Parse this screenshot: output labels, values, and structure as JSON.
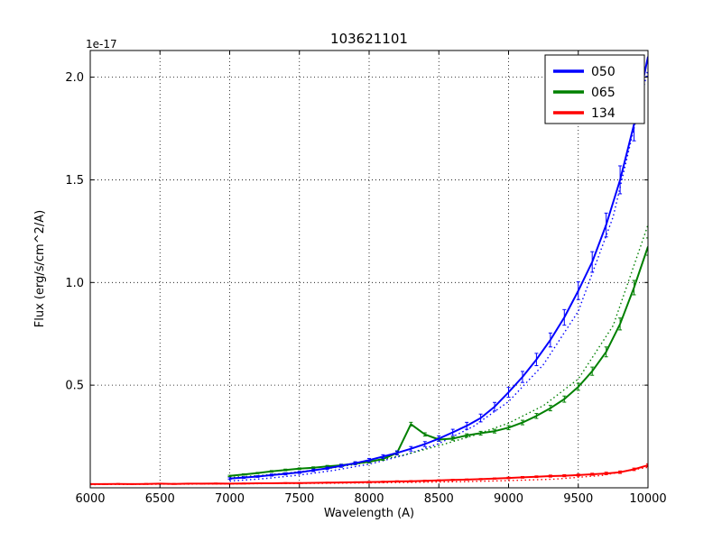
{
  "chart_data": {
    "type": "line",
    "title": "103621101",
    "xlabel": "Wavelength (A)",
    "ylabel": "Flux (erg/s/cm^2/A)",
    "y_offset_label": "1e-17",
    "xlim": [
      6000,
      10000
    ],
    "ylim": [
      0,
      2.13
    ],
    "grid": true,
    "x_ticks": [
      6000,
      6500,
      7000,
      7500,
      8000,
      8500,
      9000,
      9500,
      10000
    ],
    "x_tick_labels": [
      "6000",
      "6500",
      "7000",
      "7500",
      "8000",
      "8500",
      "9000",
      "9500",
      "10000"
    ],
    "y_ticks": [
      0.5,
      1.0,
      1.5,
      2.0
    ],
    "y_tick_labels": [
      "0.5",
      "1.0",
      "1.5",
      "2.0"
    ],
    "legend": {
      "position": "upper right",
      "entries": [
        {
          "label": "050",
          "color": "#0000ff"
        },
        {
          "label": "065",
          "color": "#008000"
        },
        {
          "label": "134",
          "color": "#ff0000"
        }
      ]
    },
    "series": [
      {
        "name": "050-dotted",
        "color": "#0000ff",
        "style": "dotted",
        "x": [
          7000,
          7250,
          7500,
          7750,
          8000,
          8250,
          8500,
          8750,
          9000,
          9250,
          9500,
          9750,
          10000
        ],
        "y": [
          0.033,
          0.045,
          0.062,
          0.085,
          0.115,
          0.158,
          0.215,
          0.3,
          0.42,
          0.6,
          0.86,
          1.32,
          2.04
        ]
      },
      {
        "name": "065-dotted",
        "color": "#008000",
        "style": "dotted",
        "x": [
          7000,
          7250,
          7500,
          7750,
          8000,
          8250,
          8500,
          8750,
          9000,
          9250,
          9500,
          9750,
          10000
        ],
        "y": [
          0.05,
          0.062,
          0.078,
          0.098,
          0.125,
          0.16,
          0.205,
          0.255,
          0.315,
          0.4,
          0.53,
          0.79,
          1.28
        ]
      },
      {
        "name": "134-dotted",
        "color": "#ff0000",
        "style": "dotted",
        "x": [
          6000,
          6333,
          6667,
          7000,
          7333,
          7667,
          8000,
          8333,
          8667,
          9000,
          9333,
          9667,
          10000
        ],
        "y": [
          0.016,
          0.017,
          0.018,
          0.019,
          0.021,
          0.022,
          0.024,
          0.027,
          0.03,
          0.035,
          0.042,
          0.06,
          0.1
        ]
      },
      {
        "name": "134",
        "color": "#ff0000",
        "style": "solid",
        "x": [
          6000,
          6100,
          6200,
          6300,
          6400,
          6500,
          6600,
          6700,
          6800,
          6900,
          7000,
          7100,
          7200,
          7300,
          7400,
          7500,
          7600,
          7700,
          7800,
          7900,
          8000,
          8100,
          8200,
          8300,
          8400,
          8500,
          8600,
          8700,
          8800,
          8900,
          9000,
          9100,
          9200,
          9300,
          9400,
          9500,
          9600,
          9700,
          9800,
          9900,
          10000
        ],
        "y": [
          0.018,
          0.018,
          0.019,
          0.018,
          0.019,
          0.02,
          0.019,
          0.02,
          0.02,
          0.021,
          0.02,
          0.021,
          0.022,
          0.022,
          0.023,
          0.023,
          0.024,
          0.025,
          0.026,
          0.027,
          0.028,
          0.029,
          0.031,
          0.032,
          0.034,
          0.036,
          0.038,
          0.04,
          0.042,
          0.045,
          0.048,
          0.051,
          0.054,
          0.057,
          0.059,
          0.062,
          0.066,
          0.07,
          0.076,
          0.09,
          0.11
        ],
        "yerr": [
          0.002,
          0.002,
          0.002,
          0.002,
          0.002,
          0.002,
          0.002,
          0.002,
          0.002,
          0.002,
          0.002,
          0.002,
          0.002,
          0.002,
          0.002,
          0.002,
          0.002,
          0.002,
          0.002,
          0.002,
          0.003,
          0.003,
          0.003,
          0.003,
          0.003,
          0.003,
          0.003,
          0.003,
          0.003,
          0.003,
          0.004,
          0.004,
          0.004,
          0.005,
          0.005,
          0.005,
          0.005,
          0.006,
          0.006,
          0.006,
          0.007
        ]
      },
      {
        "name": "065",
        "color": "#008000",
        "style": "solid",
        "x": [
          7000,
          7100,
          7200,
          7300,
          7400,
          7500,
          7600,
          7700,
          7800,
          7900,
          8000,
          8100,
          8200,
          8300,
          8400,
          8500,
          8600,
          8700,
          8800,
          8900,
          9000,
          9100,
          9200,
          9300,
          9400,
          9500,
          9600,
          9700,
          9800,
          9900,
          10000
        ],
        "y": [
          0.058,
          0.065,
          0.072,
          0.08,
          0.087,
          0.093,
          0.098,
          0.104,
          0.11,
          0.118,
          0.127,
          0.14,
          0.17,
          0.31,
          0.26,
          0.235,
          0.24,
          0.255,
          0.266,
          0.276,
          0.293,
          0.318,
          0.35,
          0.388,
          0.432,
          0.492,
          0.568,
          0.662,
          0.798,
          0.975,
          1.175
        ],
        "yerr": [
          0.003,
          0.003,
          0.003,
          0.004,
          0.004,
          0.004,
          0.004,
          0.005,
          0.005,
          0.005,
          0.006,
          0.006,
          0.007,
          0.009,
          0.008,
          0.008,
          0.008,
          0.008,
          0.009,
          0.009,
          0.01,
          0.011,
          0.012,
          0.013,
          0.015,
          0.017,
          0.02,
          0.024,
          0.029,
          0.035,
          0.042
        ]
      },
      {
        "name": "050",
        "color": "#0000ff",
        "style": "solid",
        "x": [
          7000,
          7100,
          7200,
          7300,
          7400,
          7500,
          7600,
          7700,
          7800,
          7900,
          8000,
          8100,
          8200,
          8300,
          8400,
          8500,
          8600,
          8700,
          8800,
          8900,
          9000,
          9100,
          9200,
          9300,
          9400,
          9500,
          9600,
          9700,
          9800,
          9900,
          10000
        ],
        "y": [
          0.045,
          0.05,
          0.055,
          0.062,
          0.068,
          0.075,
          0.085,
          0.095,
          0.107,
          0.12,
          0.135,
          0.152,
          0.17,
          0.19,
          0.213,
          0.24,
          0.27,
          0.302,
          0.34,
          0.395,
          0.465,
          0.54,
          0.625,
          0.72,
          0.83,
          0.96,
          1.1,
          1.28,
          1.5,
          1.77,
          2.1
        ],
        "yerr": [
          0.004,
          0.004,
          0.004,
          0.005,
          0.005,
          0.005,
          0.006,
          0.006,
          0.007,
          0.007,
          0.008,
          0.009,
          0.01,
          0.011,
          0.012,
          0.013,
          0.015,
          0.017,
          0.019,
          0.021,
          0.024,
          0.027,
          0.03,
          0.034,
          0.038,
          0.043,
          0.05,
          0.058,
          0.068,
          0.08,
          0.095
        ]
      }
    ]
  }
}
